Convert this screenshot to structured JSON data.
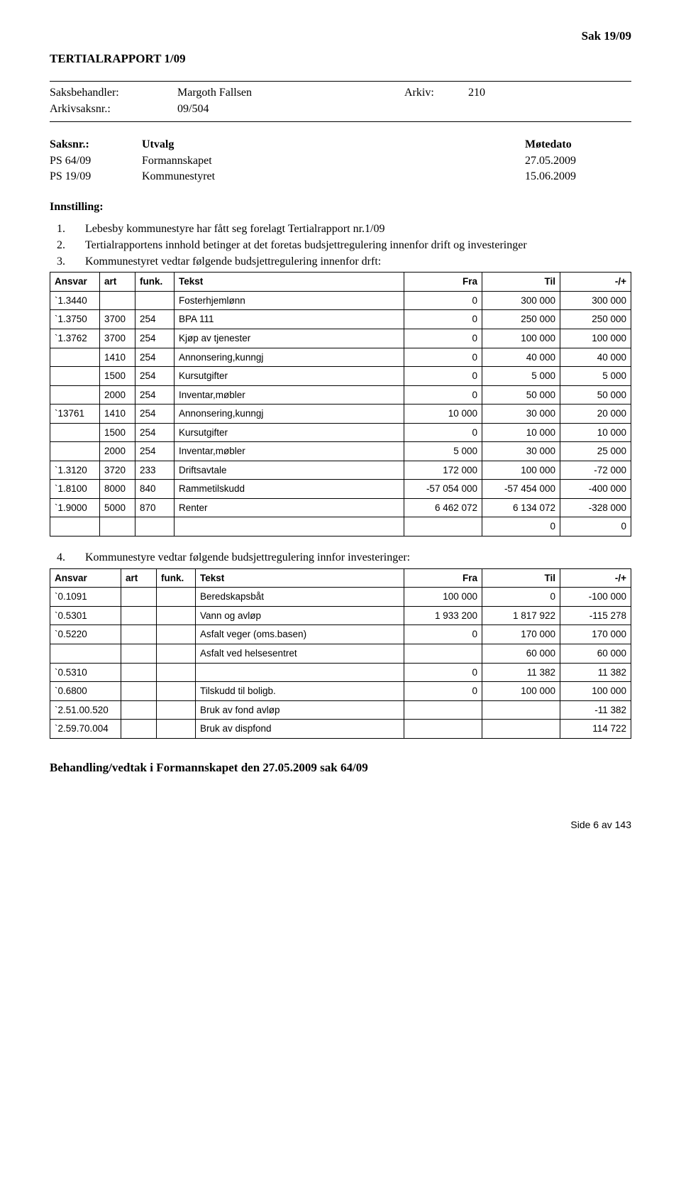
{
  "header_right": "Sak  19/09",
  "title": "TERTIALRAPPORT 1/09",
  "meta": {
    "saksbehandler_label": "Saksbehandler:",
    "saksbehandler": "Margoth Fallsen",
    "arkiv_label": "Arkiv:",
    "arkiv": "210",
    "arkivsaksnr_label": "Arkivsaksnr.:",
    "arkivsaksnr": "09/504"
  },
  "sak": {
    "col1": "Saksnr.:",
    "col2": "Utvalg",
    "col3": "Møtedato",
    "rows": [
      {
        "c1": "PS 64/09",
        "c2": "Formannskapet",
        "c3": "27.05.2009"
      },
      {
        "c1": "PS 19/09",
        "c2": "Kommunestyret",
        "c3": "15.06.2009"
      }
    ]
  },
  "innstilling_label": "Innstilling:",
  "list_items": [
    "Lebesby kommunestyre har fått seg forelagt Tertialrapport nr.1/09",
    "Tertialrapportens innhold betinger at det foretas budsjettregulering innenfor drift og investeringer",
    "Kommunestyret vedtar følgende budsjettregulering innenfor drft:"
  ],
  "table_headers": {
    "ansvar": "Ansvar",
    "art": "art",
    "funk": "funk.",
    "tekst": "Tekst",
    "fra": "Fra",
    "til": "Til",
    "pm": "-/+"
  },
  "table1": [
    {
      "ansvar": "`1.3440",
      "art": "",
      "funk": "",
      "tekst": "Fosterhjemlønn",
      "fra": "0",
      "til": "300 000",
      "pm": "300 000"
    },
    {
      "ansvar": "`1.3750",
      "art": "3700",
      "funk": "254",
      "tekst": "BPA 111",
      "fra": "0",
      "til": "250 000",
      "pm": "250 000"
    },
    {
      "ansvar": "`1.3762",
      "art": "3700",
      "funk": "254",
      "tekst": "Kjøp av tjenester",
      "fra": "0",
      "til": "100 000",
      "pm": "100 000"
    },
    {
      "ansvar": "",
      "art": "1410",
      "funk": "254",
      "tekst": "Annonsering,kunngj",
      "fra": "0",
      "til": "40 000",
      "pm": "40 000"
    },
    {
      "ansvar": "",
      "art": "1500",
      "funk": "254",
      "tekst": "Kursutgifter",
      "fra": "0",
      "til": "5 000",
      "pm": "5 000"
    },
    {
      "ansvar": "",
      "art": "2000",
      "funk": "254",
      "tekst": "Inventar,møbler",
      "fra": "0",
      "til": "50 000",
      "pm": "50 000"
    },
    {
      "ansvar": "`13761",
      "art": "1410",
      "funk": "254",
      "tekst": "Annonsering,kunngj",
      "fra": "10 000",
      "til": "30 000",
      "pm": "20 000"
    },
    {
      "ansvar": "",
      "art": "1500",
      "funk": "254",
      "tekst": "Kursutgifter",
      "fra": "0",
      "til": "10 000",
      "pm": "10 000"
    },
    {
      "ansvar": "",
      "art": "2000",
      "funk": "254",
      "tekst": "Inventar,møbler",
      "fra": "5 000",
      "til": "30 000",
      "pm": "25 000"
    },
    {
      "ansvar": "`1.3120",
      "art": "3720",
      "funk": "233",
      "tekst": "Driftsavtale",
      "fra": "172 000",
      "til": "100 000",
      "pm": "-72 000"
    },
    {
      "ansvar": "`1.8100",
      "art": "8000",
      "funk": "840",
      "tekst": "Rammetilskudd",
      "fra": "-57 054 000",
      "til": "-57 454 000",
      "pm": "-400 000"
    },
    {
      "ansvar": "`1.9000",
      "art": "5000",
      "funk": "870",
      "tekst": "Renter",
      "fra": "6 462 072",
      "til": "6 134 072",
      "pm": "-328 000"
    },
    {
      "ansvar": "",
      "art": "",
      "funk": "",
      "tekst": "",
      "fra": "",
      "til": "0",
      "pm": "0"
    }
  ],
  "item4": "Kommunestyre vedtar følgende budsjettregulering innfor investeringer:",
  "table2": [
    {
      "ansvar": "`0.1091",
      "art": "",
      "funk": "",
      "tekst": "Beredskapsbåt",
      "fra": "100 000",
      "til": "0",
      "pm": "-100 000"
    },
    {
      "ansvar": "`0.5301",
      "art": "",
      "funk": "",
      "tekst": "Vann og avløp",
      "fra": "1 933 200",
      "til": "1 817 922",
      "pm": "-115 278"
    },
    {
      "ansvar": "`0.5220",
      "art": "",
      "funk": "",
      "tekst": "Asfalt veger (oms.basen)",
      "fra": "0",
      "til": "170 000",
      "pm": "170 000"
    },
    {
      "ansvar": "",
      "art": "",
      "funk": "",
      "tekst": "Asfalt ved helsesentret",
      "fra": "",
      "til": "60 000",
      "pm": "60 000"
    },
    {
      "ansvar": "`0.5310",
      "art": "",
      "funk": "",
      "tekst": "",
      "fra": "0",
      "til": "11 382",
      "pm": "11 382"
    },
    {
      "ansvar": "`0.6800",
      "art": "",
      "funk": "",
      "tekst": "Tilskudd til boligb.",
      "fra": "0",
      "til": "100 000",
      "pm": "100 000"
    },
    {
      "ansvar": "`2.51.00.520",
      "art": "",
      "funk": "",
      "tekst": "Bruk av fond avløp",
      "fra": "",
      "til": "",
      "pm": "-11 382"
    },
    {
      "ansvar": "`2.59.70.004",
      "art": "",
      "funk": "",
      "tekst": "Bruk av dispfond",
      "fra": "",
      "til": "",
      "pm": "114 722"
    }
  ],
  "footer": "Behandling/vedtak i Formannskapet den 27.05.2009 sak 64/09",
  "page_number": "Side 6 av 143"
}
